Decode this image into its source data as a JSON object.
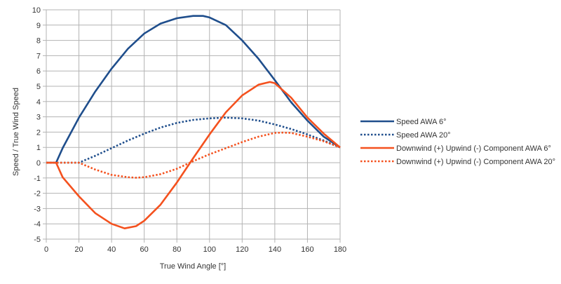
{
  "chart_data": {
    "type": "line",
    "title": "",
    "xlabel": "True Wind Angle [°]",
    "ylabel": "Speed / True Wind Speed",
    "xlim": [
      0,
      180
    ],
    "ylim": [
      -5,
      10
    ],
    "xticks": [
      0,
      20,
      40,
      60,
      80,
      100,
      120,
      140,
      160,
      180
    ],
    "yticks": [
      -5,
      -4,
      -3,
      -2,
      -1,
      0,
      1,
      2,
      3,
      4,
      5,
      6,
      7,
      8,
      9,
      10
    ],
    "grid": true,
    "legend_position": "right",
    "series": [
      {
        "name": "Speed AWA 6°",
        "color": "#1f4e8c",
        "style": "solid",
        "x": [
          0,
          6,
          10,
          20,
          30,
          40,
          50,
          60,
          70,
          80,
          90,
          96,
          100,
          110,
          120,
          130,
          140,
          150,
          160,
          170,
          180
        ],
        "y": [
          0,
          0,
          0.95,
          2.95,
          4.65,
          6.15,
          7.45,
          8.45,
          9.1,
          9.45,
          9.6,
          9.6,
          9.5,
          9.0,
          8.0,
          6.8,
          5.4,
          3.95,
          2.75,
          1.7,
          1.0
        ]
      },
      {
        "name": "Speed AWA 20°",
        "color": "#1f4e8c",
        "style": "dotted",
        "x": [
          0,
          20,
          30,
          40,
          50,
          60,
          70,
          80,
          90,
          100,
          110,
          120,
          130,
          140,
          150,
          160,
          170,
          180
        ],
        "y": [
          0,
          0,
          0.45,
          0.95,
          1.45,
          1.9,
          2.3,
          2.6,
          2.8,
          2.9,
          2.95,
          2.9,
          2.75,
          2.5,
          2.2,
          1.85,
          1.45,
          1.0
        ]
      },
      {
        "name": "Downwind (+) Upwind (-) Component AWA 6°",
        "color": "#f4511e",
        "style": "solid",
        "x": [
          0,
          6,
          10,
          20,
          30,
          40,
          48,
          55,
          60,
          70,
          80,
          90,
          100,
          110,
          120,
          130,
          137,
          140,
          150,
          160,
          170,
          180
        ],
        "y": [
          0,
          0,
          -0.95,
          -2.2,
          -3.3,
          -4.0,
          -4.3,
          -4.15,
          -3.8,
          -2.75,
          -1.3,
          0.3,
          1.85,
          3.3,
          4.4,
          5.1,
          5.28,
          5.2,
          4.25,
          2.95,
          1.9,
          1.0
        ]
      },
      {
        "name": "Downwind (+) Upwind (-) Component AWA 20°",
        "color": "#f4511e",
        "style": "dotted",
        "x": [
          0,
          20,
          30,
          40,
          50,
          55,
          60,
          70,
          80,
          90,
          100,
          110,
          120,
          130,
          140,
          145,
          150,
          160,
          170,
          180
        ],
        "y": [
          0,
          0,
          -0.45,
          -0.8,
          -0.95,
          -0.98,
          -0.95,
          -0.75,
          -0.4,
          0.1,
          0.55,
          0.95,
          1.35,
          1.7,
          1.95,
          1.97,
          1.95,
          1.7,
          1.4,
          1.0
        ]
      }
    ]
  }
}
